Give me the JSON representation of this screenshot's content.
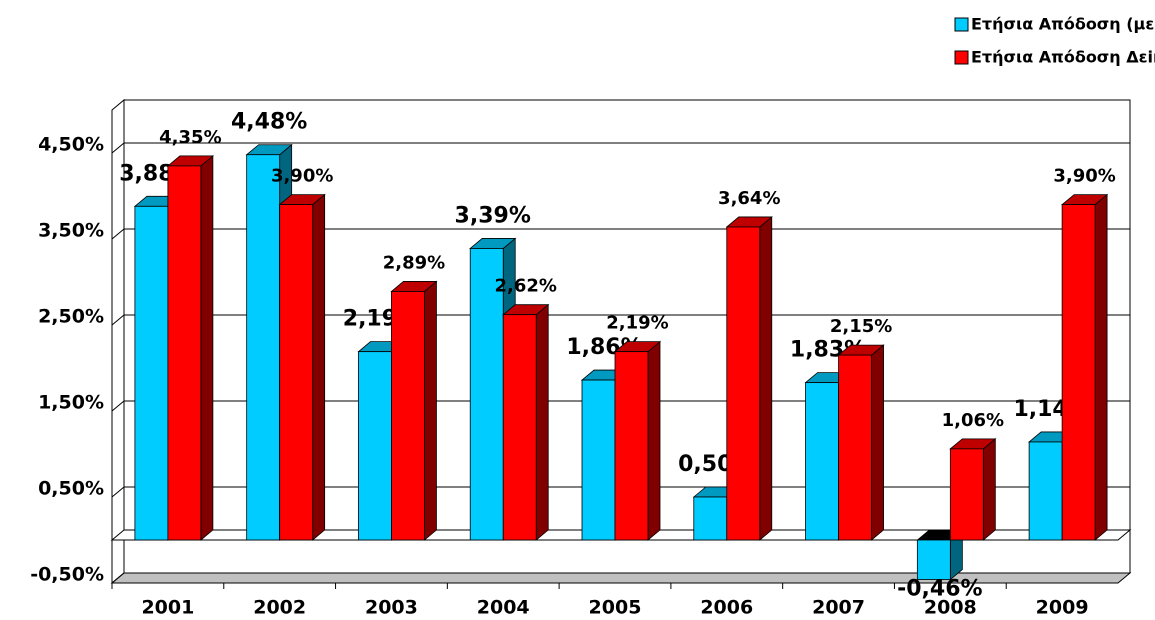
{
  "chart_data": {
    "type": "bar3d",
    "categories": [
      "2001",
      "2002",
      "2003",
      "2004",
      "2005",
      "2006",
      "2007",
      "2008",
      "2009"
    ],
    "series": [
      {
        "name": "Ετήσια Απόδοση (με μέρισμα) %",
        "color": "#00ccff",
        "values": [
          3.88,
          4.48,
          2.19,
          3.39,
          1.86,
          0.5,
          1.83,
          -0.46,
          1.14
        ],
        "value_labels": [
          "3,88%",
          "4,48%",
          "2,19%",
          "3,39%",
          "1,86%",
          "0,50%",
          "1,83%",
          "-0,46%",
          "1,14%"
        ]
      },
      {
        "name": "Ετήσια Απόδοση Δεiκτη",
        "color": "#ff0000",
        "values": [
          4.35,
          3.9,
          2.89,
          2.62,
          2.19,
          3.64,
          2.15,
          1.06,
          3.9
        ],
        "value_labels": [
          "4,35%",
          "3,90%",
          "2,89%",
          "2,62%",
          "2,19%",
          "3,64%",
          "2,15%",
          "1,06%",
          "3,90%"
        ]
      }
    ],
    "ylim": [
      -0.5,
      5.0
    ],
    "yticks": [
      {
        "value": -0.5,
        "label": "-0,50%"
      },
      {
        "value": 0.5,
        "label": "0,50%"
      },
      {
        "value": 1.5,
        "label": "1,50%"
      },
      {
        "value": 2.5,
        "label": "2,50%"
      },
      {
        "value": 3.5,
        "label": "3,50%"
      },
      {
        "value": 4.5,
        "label": "4,50%"
      }
    ],
    "grid": true,
    "legend": "top-right"
  }
}
